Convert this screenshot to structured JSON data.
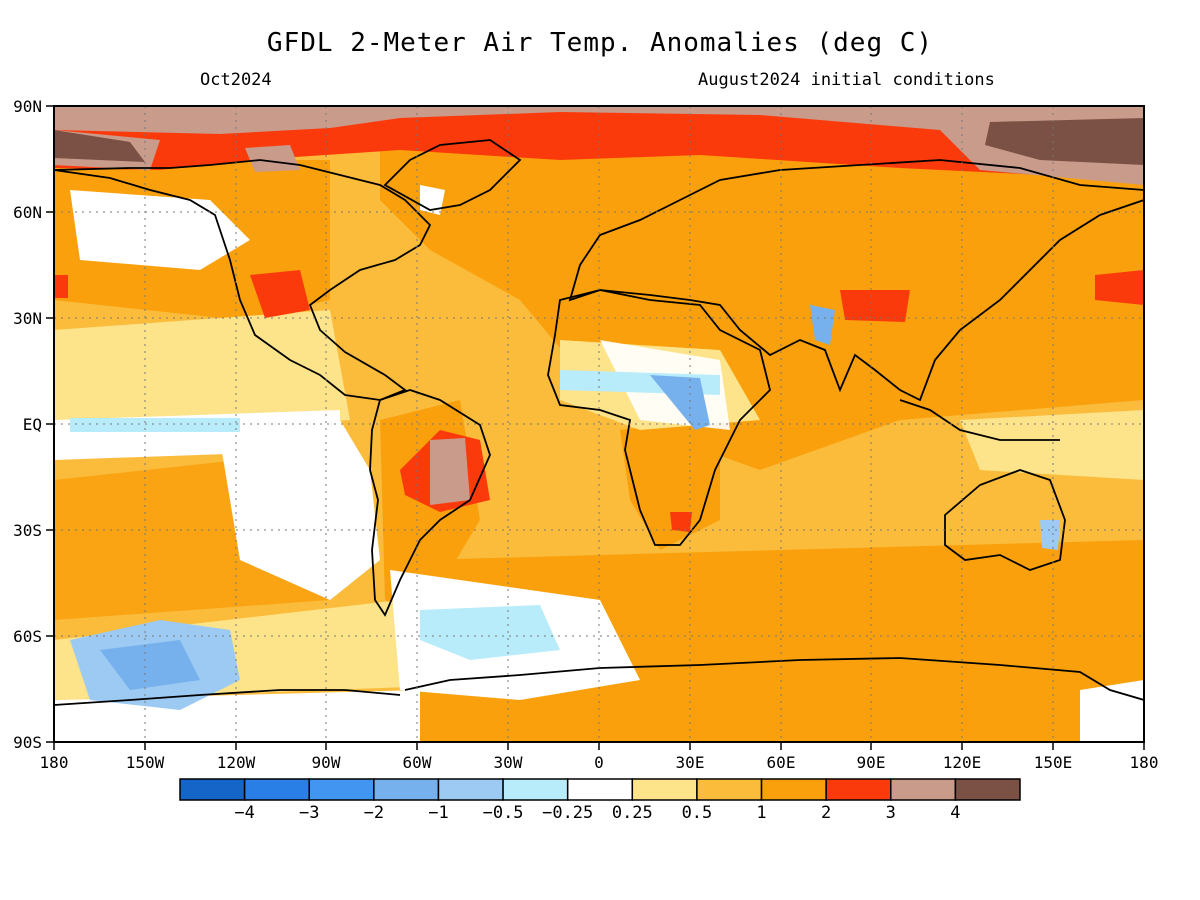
{
  "title": "GFDL 2-Meter Air Temp. Anomalies (deg C)",
  "subtitle_left": "Oct2024",
  "subtitle_right": "August2024 initial conditions",
  "lat_labels": [
    "90N",
    "60N",
    "30N",
    "EQ",
    "30S",
    "60S",
    "90S"
  ],
  "lon_labels": [
    "180",
    "150W",
    "120W",
    "90W",
    "60W",
    "30W",
    "0",
    "30E",
    "60E",
    "90E",
    "120E",
    "150E",
    "180"
  ],
  "colorbar": {
    "colors": [
      "#1565c8",
      "#2a7fe6",
      "#4395f2",
      "#76b1ee",
      "#9ccaf2",
      "#b8ecfa",
      "#ffffff",
      "#fde38a",
      "#fbbc3c",
      "#f9a00c",
      "#fb3a0c",
      "#c99b8b",
      "#7a5144"
    ],
    "labels": [
      "-4",
      "-3",
      "-2",
      "-1",
      "-0.5",
      "-0.25",
      "0.25",
      "0.5",
      "1",
      "2",
      "3",
      "4"
    ]
  }
}
